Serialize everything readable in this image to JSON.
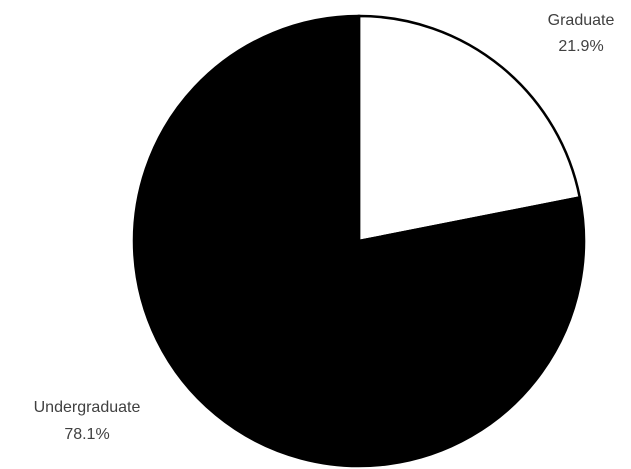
{
  "chart_data": {
    "type": "pie",
    "title": "",
    "slices": [
      {
        "label": "Graduate",
        "value": 21.9,
        "value_label": "21.9%",
        "color": "#ffffff"
      },
      {
        "label": "Undergraduate",
        "value": 78.1,
        "value_label": "78.1%",
        "color": "#000000"
      }
    ],
    "start_angle_deg": 0,
    "direction": "clockwise",
    "outline_color": "#000000",
    "label_color": "#404040",
    "legend": "none"
  }
}
